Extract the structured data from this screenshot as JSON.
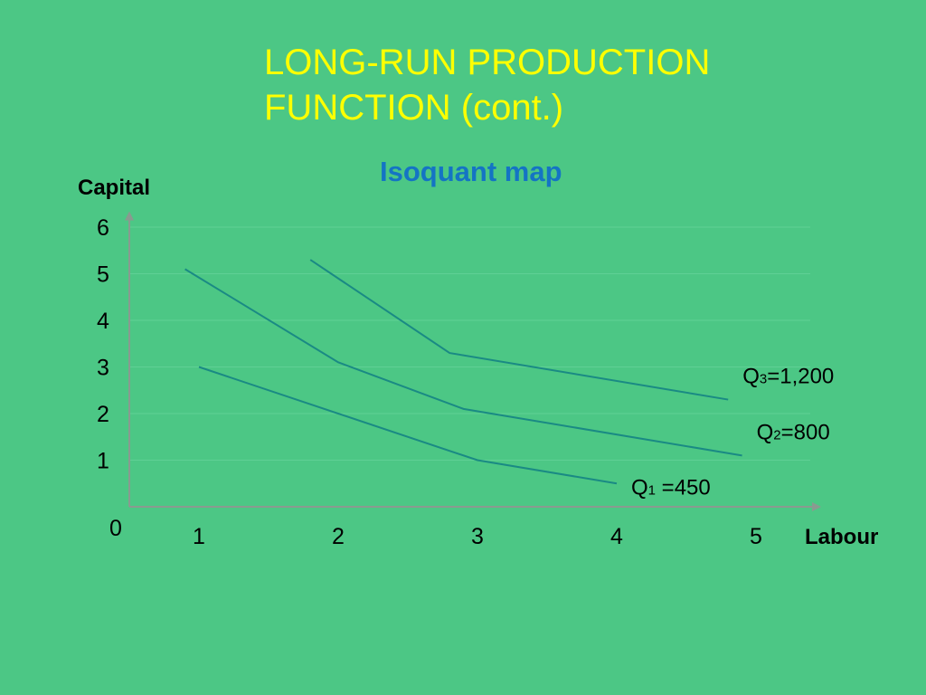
{
  "slide": {
    "background": "#4CC785",
    "title_lines": [
      "LONG-RUN PRODUCTION",
      "FUNCTION (cont.)"
    ],
    "title_color": "#FFFF00",
    "subtitle": "Isoquant map",
    "subtitle_color": "#1474C4"
  },
  "chart_data": {
    "type": "line",
    "title": "Isoquant map",
    "xlabel": "Labour",
    "ylabel": "Capital",
    "origin_label": "0",
    "x_ticks": [
      "1",
      "2",
      "3",
      "4",
      "5"
    ],
    "y_ticks": [
      "1",
      "2",
      "3",
      "4",
      "5",
      "6"
    ],
    "xlim": [
      0.5,
      5
    ],
    "ylim": [
      0,
      6.3
    ],
    "grid": true,
    "line_color": "#1A8A84",
    "series": [
      {
        "name": "Q1 =450",
        "label_prefix": "Q",
        "label_sub": "1",
        "label_value": " =450",
        "x": [
          1.0,
          3.0,
          4.0
        ],
        "y": [
          3.0,
          1.0,
          0.5
        ]
      },
      {
        "name": "Q2=800",
        "label_prefix": "Q",
        "label_sub": "2",
        "label_value": "=800",
        "x": [
          0.9,
          2.0,
          2.9,
          4.9
        ],
        "y": [
          5.1,
          3.1,
          2.1,
          1.1
        ]
      },
      {
        "name": "Q3=1,200",
        "label_prefix": "Q",
        "label_sub": "3",
        "label_value": "=1,200",
        "x": [
          1.8,
          2.8,
          4.8
        ],
        "y": [
          5.3,
          3.3,
          2.3
        ]
      }
    ]
  }
}
